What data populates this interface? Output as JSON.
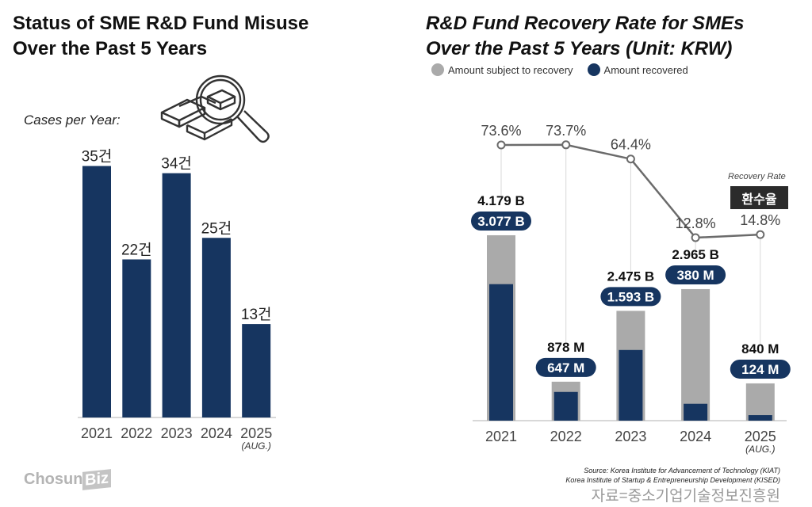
{
  "left_panel": {
    "title_line1": "Status of SME R&D Fund Misuse",
    "title_line2": "Over the Past 5 Years",
    "subcaption": "Cases per Year:",
    "icon": "magnifier-over-gold-bars-icon"
  },
  "right_panel": {
    "title_line1": "R&D Fund Recovery Rate for SMEs",
    "title_line2": "Over the Past 5 Years (Unit: KRW)",
    "legend": [
      {
        "label": "Amount subject to recovery",
        "color": "#aaaaaa"
      },
      {
        "label": "Amount recovered",
        "color": "#163560"
      }
    ],
    "recovery_rate_label": "Recovery Rate",
    "recovery_rate_badge": "환수율"
  },
  "footer": {
    "logo_text": "Chosun",
    "logo_badge": "Biz",
    "source_line1": "Source: Korea Institute for Advancement of Technology (KIAT)",
    "source_line2": "Korea Institute of Startup & Entrepreneurship Development (KISED)",
    "source_kr": "자료=중소기업기술정보진흥원"
  },
  "chart_data": [
    {
      "type": "bar",
      "title": "Status of SME R&D Fund Misuse Over the Past 5 Years",
      "ylabel": "Cases per Year",
      "categories": [
        "2021",
        "2022",
        "2023",
        "2024",
        "2025"
      ],
      "category_notes": [
        "",
        "",
        "",
        "",
        "(AUG.)"
      ],
      "values": [
        35,
        22,
        34,
        25,
        13
      ],
      "data_labels": [
        "35건",
        "22건",
        "34건",
        "25건",
        "13건"
      ],
      "ylim": [
        0,
        40
      ],
      "grid": false,
      "colors": {
        "bar": "#163560"
      }
    },
    {
      "type": "bar",
      "title": "R&D Fund Recovery Rate for SMEs Over the Past 5 Years (Unit: KRW)",
      "categories": [
        "2021",
        "2022",
        "2023",
        "2024",
        "2025"
      ],
      "category_notes": [
        "",
        "",
        "",
        "",
        "(AUG.)"
      ],
      "series": [
        {
          "name": "Amount subject to recovery",
          "unit": "KRW billion",
          "values": [
            4.179,
            0.878,
            2.475,
            2.965,
            0.84
          ],
          "labels": [
            "4.179 B",
            "878 M",
            "2.475 B",
            "2.965 B",
            "840 M"
          ],
          "color": "#aaaaaa"
        },
        {
          "name": "Amount recovered",
          "unit": "KRW billion",
          "values": [
            3.077,
            0.647,
            1.593,
            0.38,
            0.124
          ],
          "labels": [
            "3.077 B",
            "647 M",
            "1.593 B",
            "380 M",
            "124 M"
          ],
          "color": "#163560"
        },
        {
          "name": "Recovery Rate",
          "type": "line",
          "unit": "%",
          "values": [
            73.6,
            73.7,
            64.4,
            12.8,
            14.8
          ],
          "labels": [
            "73.6%",
            "73.7%",
            "64.4%",
            "12.8%",
            "14.8%"
          ],
          "color": "#6b6b6b"
        }
      ],
      "ylim": [
        0,
        5
      ],
      "grid": false,
      "legend_position": "top-left"
    }
  ]
}
